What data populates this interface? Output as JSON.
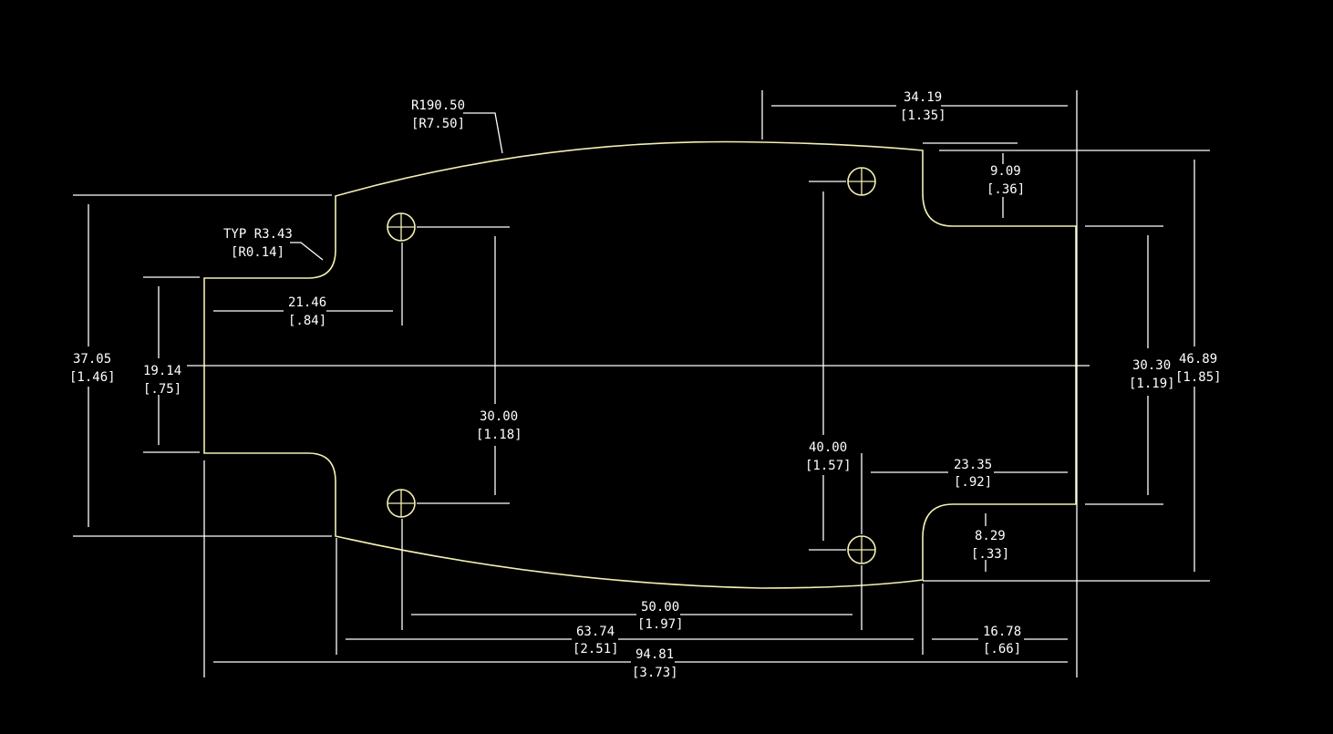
{
  "colors": {
    "background": "#000000",
    "dimension_lines": "#ffffff",
    "part_outline": "#f3f0b0"
  },
  "annotations": {
    "radius_main": {
      "mm": "R190.50",
      "in": "[R7.50]"
    },
    "radius_corner": {
      "mm": "TYP R3.43",
      "in": "[R0.14]"
    }
  },
  "dimensions": {
    "top_width": {
      "mm": "34.19",
      "in": "[1.35]"
    },
    "notch_top_depth": {
      "mm": "9.09",
      "in": "[.36]"
    },
    "left_height": {
      "mm": "37.05",
      "in": "[1.46]"
    },
    "tab_height": {
      "mm": "19.14",
      "in": "[.75]"
    },
    "hole_left_offset": {
      "mm": "21.46",
      "in": "[.84]"
    },
    "left_hole_spacing": {
      "mm": "30.00",
      "in": "[1.18]"
    },
    "right_hole_spacing": {
      "mm": "40.00",
      "in": "[1.57]"
    },
    "notch_x_offset": {
      "mm": "23.35",
      "in": "[.92]"
    },
    "right_end_height": {
      "mm": "30.30",
      "in": "[1.19]"
    },
    "overall_height": {
      "mm": "46.89",
      "in": "[1.85]"
    },
    "notch_bottom_depth": {
      "mm": "8.29",
      "in": "[.33]"
    },
    "hole_x_spacing": {
      "mm": "50.00",
      "in": "[1.97]"
    },
    "body_length": {
      "mm": "63.74",
      "in": "[2.51]"
    },
    "right_tab_length": {
      "mm": "16.78",
      "in": "[.66]"
    },
    "overall_length": {
      "mm": "94.81",
      "in": "[3.73]"
    }
  }
}
